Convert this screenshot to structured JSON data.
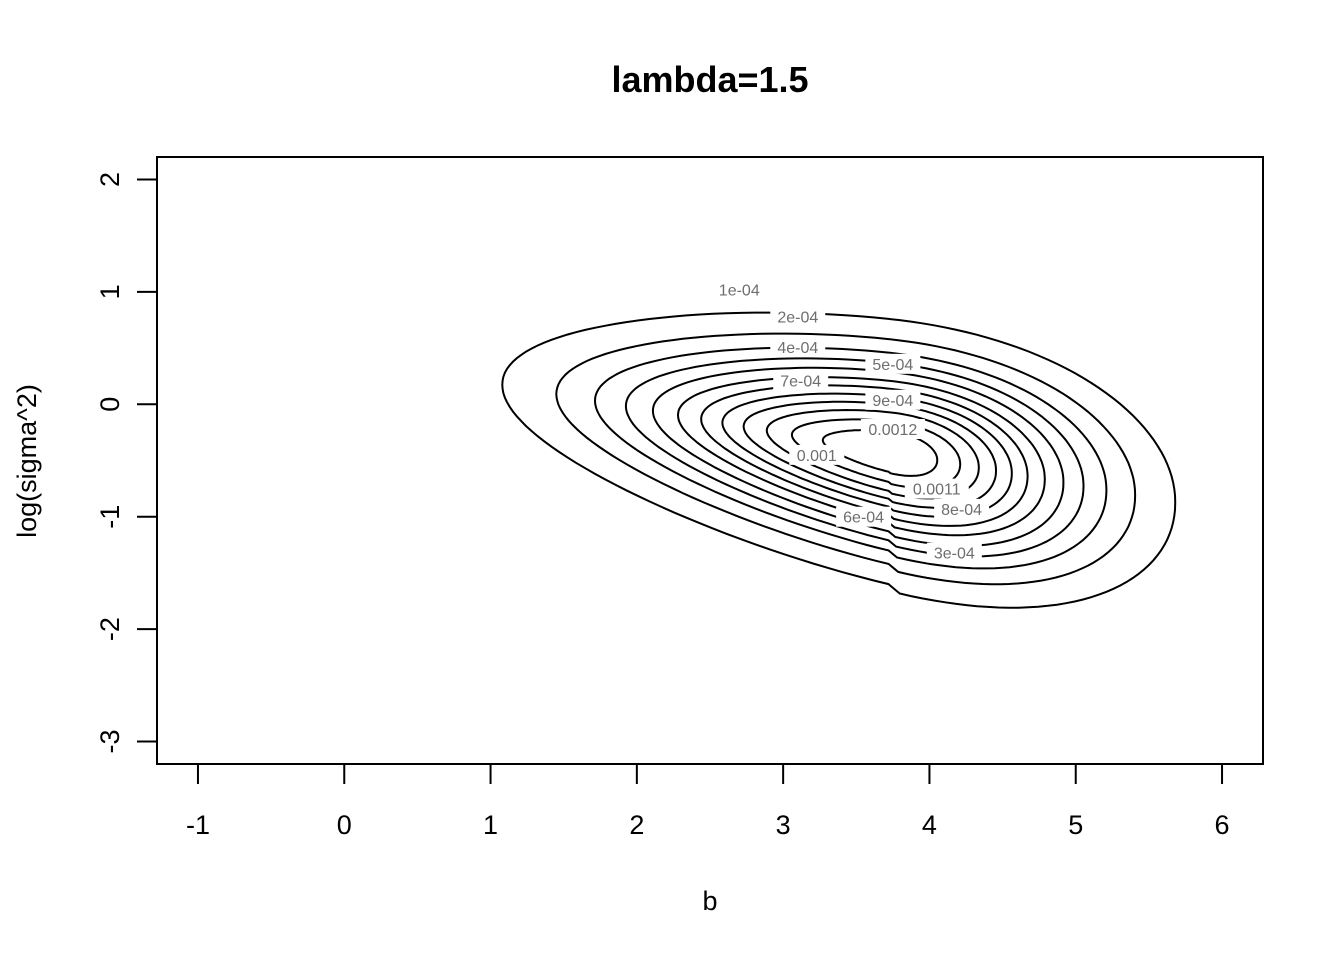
{
  "chart_data": {
    "type": "contour",
    "title": "lambda=1.5",
    "xlabel": "b",
    "ylabel": "log(sigma^2)",
    "xlim": [
      -1.28,
      6.28
    ],
    "ylim": [
      -3.2,
      2.2
    ],
    "x_ticks": [
      -1,
      0,
      1,
      2,
      3,
      4,
      5,
      6
    ],
    "y_ticks": [
      -3,
      -2,
      -1,
      0,
      1,
      2
    ],
    "grid": false,
    "contours": [
      {
        "level": "1e-04",
        "label": "1e-04",
        "cx": 3.72,
        "cy": -0.42,
        "rx": 2.0,
        "ry": 1.18,
        "label_x": 2.7,
        "label_y": 1.02
      },
      {
        "level": "2e-04",
        "label": "2e-04",
        "cx": 3.72,
        "cy": -0.42,
        "rx": 1.72,
        "ry": 1.0,
        "label_x": 3.1,
        "label_y": 0.78
      },
      {
        "level": "3e-04",
        "label": "3e-04",
        "cx": 3.72,
        "cy": -0.42,
        "rx": 1.52,
        "ry": 0.88,
        "label_x": 4.17,
        "label_y": -1.32
      },
      {
        "level": "4e-04",
        "label": "4e-04",
        "cx": 3.72,
        "cy": -0.42,
        "rx": 1.36,
        "ry": 0.79,
        "label_x": 3.1,
        "label_y": 0.51
      },
      {
        "level": "5e-04",
        "label": "5e-04",
        "cx": 3.72,
        "cy": -0.42,
        "rx": 1.22,
        "ry": 0.71,
        "label_x": 3.75,
        "label_y": 0.36
      },
      {
        "level": "6e-04",
        "label": "6e-04",
        "cx": 3.72,
        "cy": -0.42,
        "rx": 1.09,
        "ry": 0.63,
        "label_x": 3.55,
        "label_y": -1.0
      },
      {
        "level": "7e-04",
        "label": "7e-04",
        "cx": 3.72,
        "cy": -0.42,
        "rx": 0.97,
        "ry": 0.56,
        "label_x": 3.12,
        "label_y": 0.21
      },
      {
        "level": "8e-04",
        "label": "8e-04",
        "cx": 3.72,
        "cy": -0.42,
        "rx": 0.86,
        "ry": 0.49,
        "label_x": 4.22,
        "label_y": -0.93
      },
      {
        "level": "9e-04",
        "label": "9e-04",
        "cx": 3.72,
        "cy": -0.42,
        "rx": 0.75,
        "ry": 0.42,
        "label_x": 3.75,
        "label_y": 0.04
      },
      {
        "level": "0.001",
        "label": "0.001",
        "cx": 3.72,
        "cy": -0.42,
        "rx": 0.63,
        "ry": 0.35,
        "label_x": 3.23,
        "label_y": -0.45
      },
      {
        "level": "0.0011",
        "label": "0.0011",
        "cx": 3.72,
        "cy": -0.42,
        "rx": 0.5,
        "ry": 0.27,
        "label_x": 4.05,
        "label_y": -0.75
      },
      {
        "level": "0.0012",
        "label": "0.0012",
        "cx": 3.72,
        "cy": -0.42,
        "rx": 0.34,
        "ry": 0.18,
        "label_x": 3.75,
        "label_y": -0.22
      }
    ]
  }
}
